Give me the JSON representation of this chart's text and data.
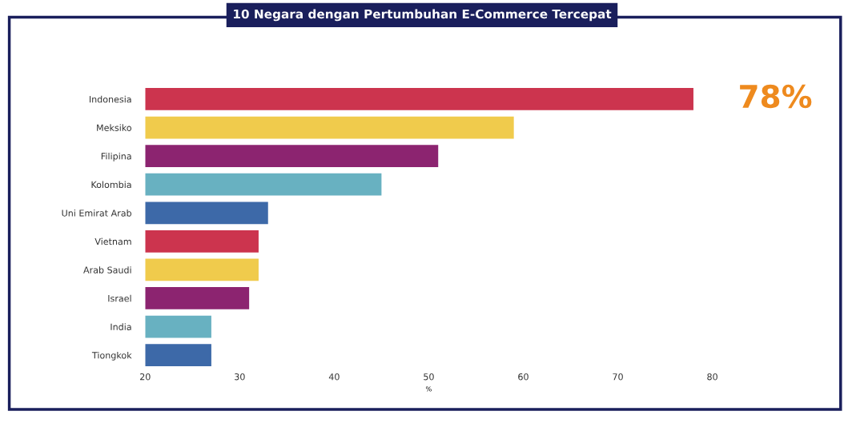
{
  "chart_data": {
    "type": "bar",
    "orientation": "horizontal",
    "title": "10 Negara dengan Pertumbuhan E-Commerce Tercepat",
    "xlabel": "%",
    "categories": [
      "Indonesia",
      "Meksiko",
      "Filipina",
      "Kolombia",
      "Uni Emirat Arab",
      "Vietnam",
      "Arab Saudi",
      "Israel",
      "India",
      "Tiongkok"
    ],
    "values": [
      78,
      59,
      51,
      45,
      33,
      32,
      32,
      31,
      27,
      27
    ],
    "colors": [
      "#cc344e",
      "#f0cb4c",
      "#8c2470",
      "#68b1c1",
      "#3d69a8",
      "#cc344e",
      "#f0cb4c",
      "#8c2470",
      "#68b1c1",
      "#3d69a8"
    ],
    "value_labels": [
      "78%",
      null,
      null,
      null,
      null,
      null,
      null,
      null,
      null,
      null
    ],
    "xlim": [
      20,
      80
    ],
    "xticks": [
      20,
      30,
      40,
      50,
      60,
      70,
      80
    ],
    "grid": false,
    "legend": false
  }
}
